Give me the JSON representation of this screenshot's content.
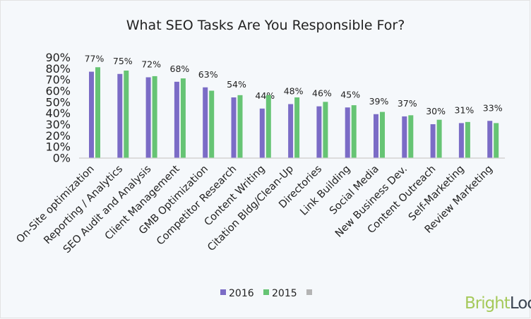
{
  "chart_data": {
    "type": "bar",
    "title": "What SEO Tasks Are You Responsible For?",
    "categories": [
      "On-Site optimization",
      "Reporting / Analytics",
      "SEO Audit and Analysis",
      "Client Management",
      "GMB Optimization",
      "Competitor Research",
      "Content Writing",
      "Citation Bldg/Clean-Up",
      "Directories",
      "Link Building",
      "Social Media",
      "New Business Dev.",
      "Content Outreach",
      "Self-Marketing",
      "Review Marketing"
    ],
    "series": [
      {
        "name": "2016",
        "color": "#7b6cc6",
        "values": [
          77,
          75,
          72,
          68,
          63,
          54,
          44,
          48,
          46,
          45,
          39,
          37,
          30,
          31,
          33
        ],
        "labeled": true
      },
      {
        "name": "2015",
        "color": "#66c474",
        "values": [
          81,
          78,
          73,
          71,
          60,
          56,
          56,
          54,
          50,
          47,
          41,
          38,
          34,
          32,
          31
        ],
        "labeled": false
      }
    ],
    "legend_extra": {
      "name": "",
      "color": "#b4b4b4"
    },
    "yticks": [
      "0%",
      "10%",
      "20%",
      "30%",
      "40%",
      "50%",
      "60%",
      "70%",
      "80%",
      "90%"
    ],
    "ylim": [
      0,
      90
    ],
    "grid": false,
    "legend_position": "bottom"
  },
  "brand": {
    "part1": "Bright",
    "part2": "Local",
    "color1": "#a5c95a",
    "color2": "#3a4350"
  }
}
